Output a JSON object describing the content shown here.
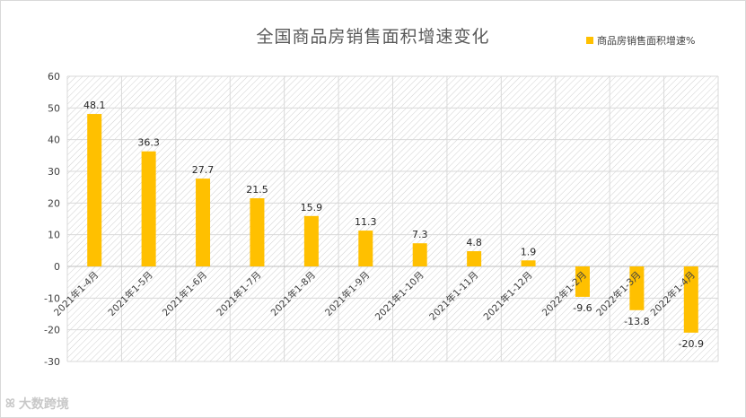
{
  "chart_data": {
    "type": "bar",
    "title": "全国商品房销售面积增速变化",
    "categories": [
      "2021年1-4月",
      "2021年1-5月",
      "2021年1-6月",
      "2021年1-7月",
      "2021年1-8月",
      "2021年1-9月",
      "2021年1-10月",
      "2021年1-11月",
      "2021年1-12月",
      "2022年1-2月",
      "2022年1-3月",
      "2022年1-4月"
    ],
    "series": [
      {
        "name": "商品房销售面积增速%",
        "values": [
          48.1,
          36.3,
          27.7,
          21.5,
          15.9,
          11.3,
          7.3,
          4.8,
          1.9,
          -9.6,
          -13.8,
          -20.9
        ]
      }
    ],
    "data_labels": [
      "48.1",
      "36.3",
      "27.7",
      "21.5",
      "15.9",
      "11.3",
      "7.3",
      "4.8",
      "1.9",
      "-9.6",
      "-13.8",
      "-20.9"
    ],
    "y_ticks": [
      "60",
      "50",
      "40",
      "30",
      "20",
      "10",
      "0",
      "-10",
      "-20",
      "-30"
    ],
    "ylim": [
      -30,
      60
    ],
    "grid": true,
    "legend_position": "top-right",
    "bar_color": "#ffc000"
  },
  "watermark": {
    "logo": "ꕤ",
    "text": "大数跨境"
  }
}
